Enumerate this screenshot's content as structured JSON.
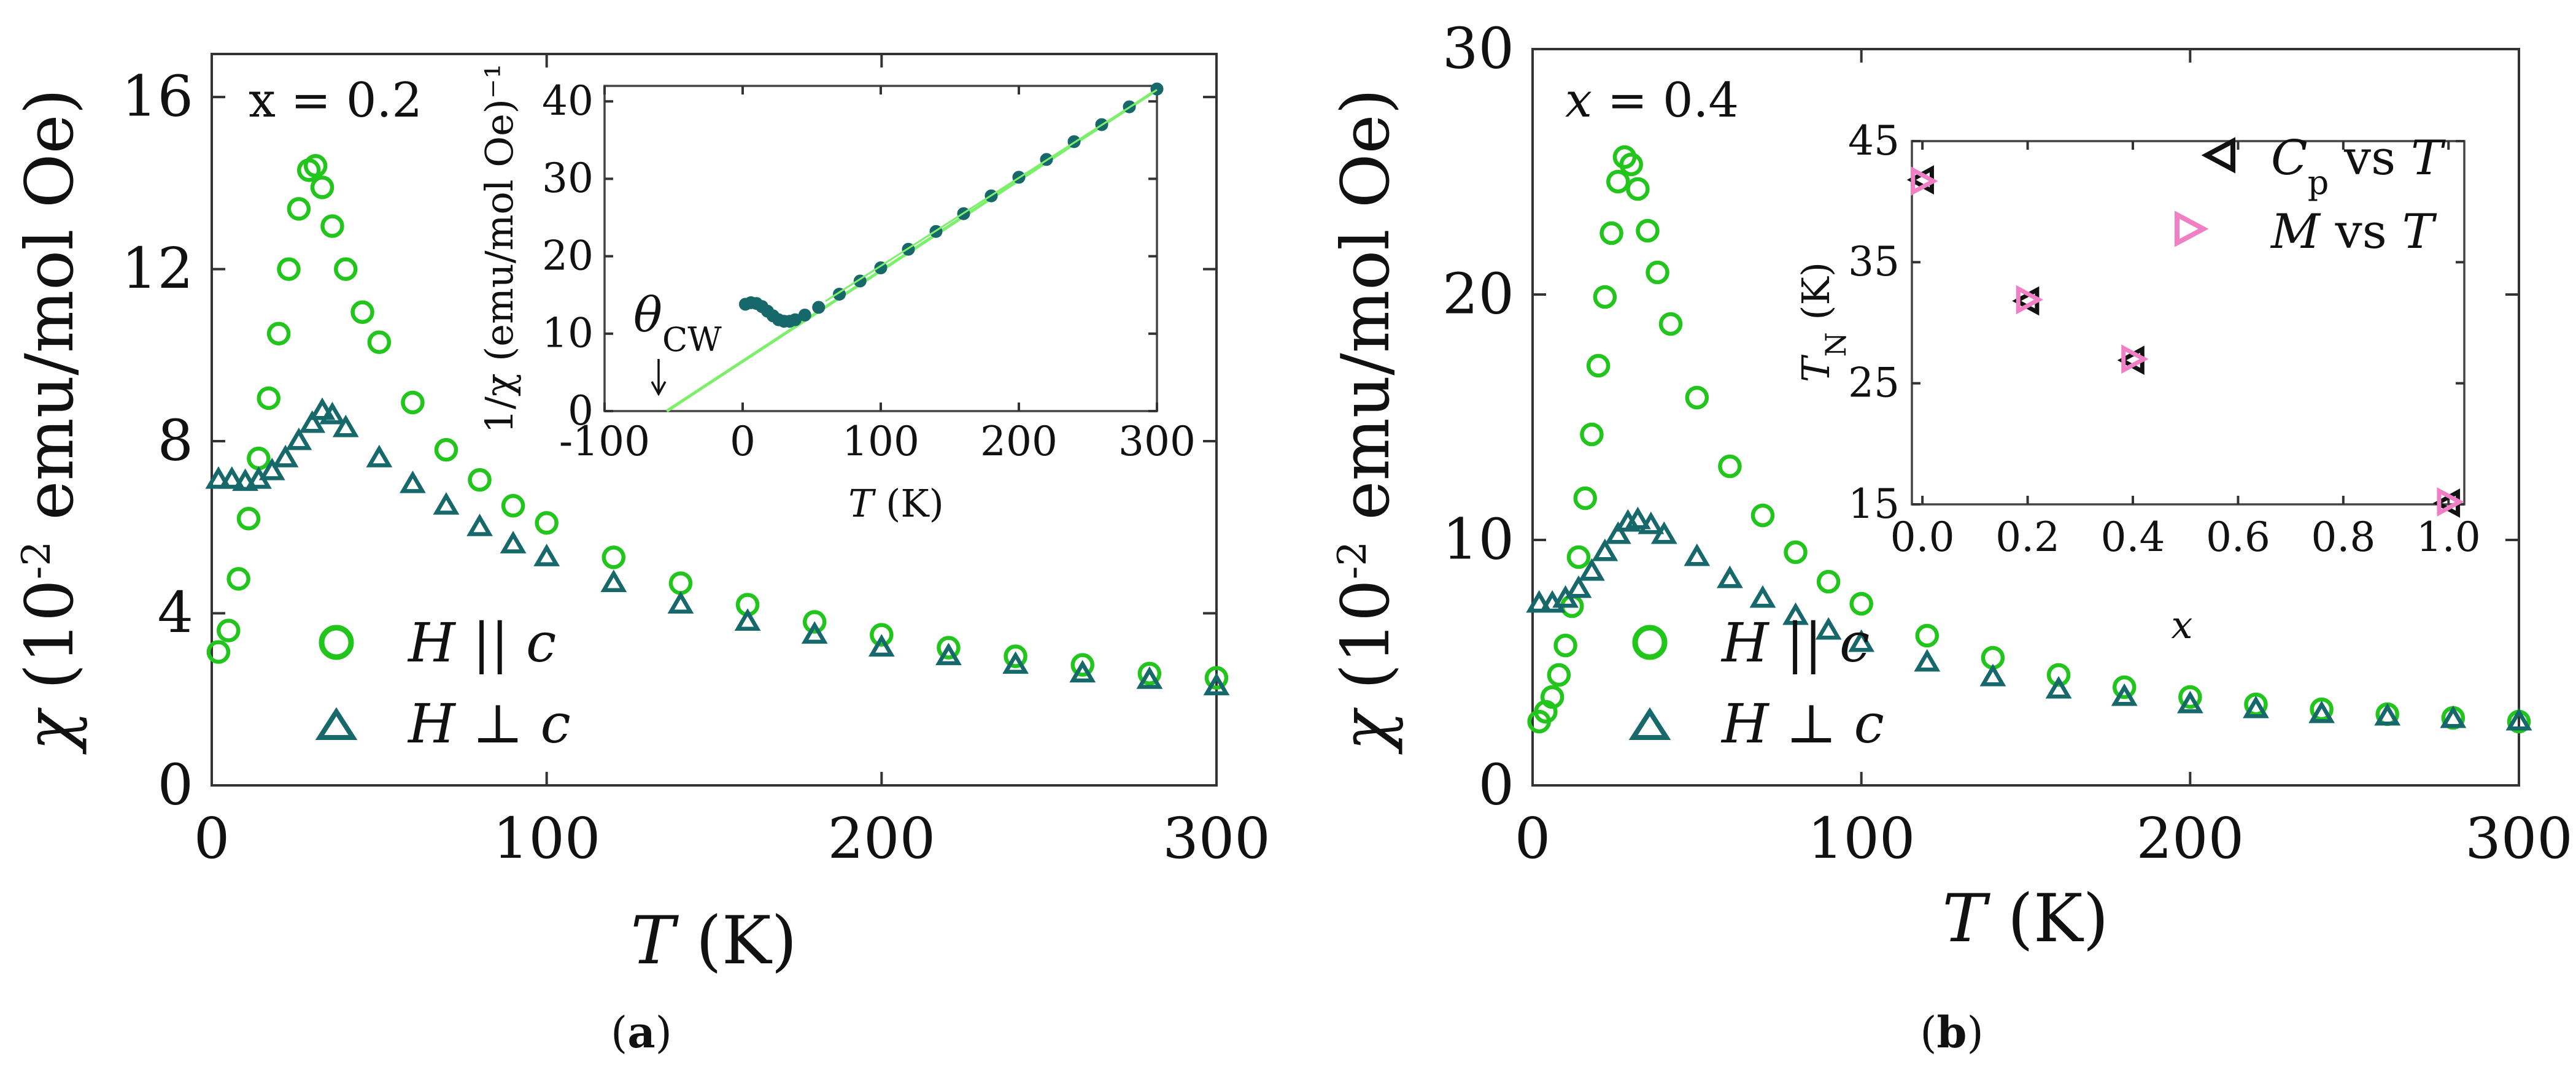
{
  "colors": {
    "h_parallel": "#22c51b",
    "h_perp": "#16686a",
    "fit_line": "#7cf06a",
    "cp_marker": "#111111",
    "m_marker": "#f07fc6"
  },
  "chart_data": [
    {
      "panel": "a",
      "type": "scatter",
      "panel_label": "(a)",
      "annotation": "x = 0.2",
      "xlabel": "T (K)",
      "ylabel": "χ (10⁻² emu/mol Oe)",
      "xlim": [
        0,
        300
      ],
      "ylim": [
        0,
        17
      ],
      "xticks": [
        "0",
        "100",
        "200",
        "300"
      ],
      "yticks": [
        "0",
        "4",
        "8",
        "12",
        "16"
      ],
      "legend_placement": "bottom-left",
      "series": [
        {
          "name": "H || c",
          "marker": "circle",
          "points": [
            [
              2,
              3.1
            ],
            [
              5,
              3.6
            ],
            [
              8,
              4.8
            ],
            [
              11,
              6.2
            ],
            [
              14,
              7.6
            ],
            [
              17,
              9.0
            ],
            [
              20,
              10.5
            ],
            [
              23,
              12.0
            ],
            [
              26,
              13.4
            ],
            [
              29,
              14.3
            ],
            [
              31,
              14.4
            ],
            [
              33,
              13.9
            ],
            [
              36,
              13.0
            ],
            [
              40,
              12.0
            ],
            [
              45,
              11.0
            ],
            [
              50,
              10.3
            ],
            [
              60,
              8.9
            ],
            [
              70,
              7.8
            ],
            [
              80,
              7.1
            ],
            [
              90,
              6.5
            ],
            [
              100,
              6.1
            ],
            [
              120,
              5.3
            ],
            [
              140,
              4.7
            ],
            [
              160,
              4.2
            ],
            [
              180,
              3.8
            ],
            [
              200,
              3.5
            ],
            [
              220,
              3.2
            ],
            [
              240,
              3.0
            ],
            [
              260,
              2.8
            ],
            [
              280,
              2.6
            ],
            [
              300,
              2.5
            ]
          ]
        },
        {
          "name": "H ⊥ c",
          "marker": "triangle",
          "points": [
            [
              2,
              7.1
            ],
            [
              6,
              7.1
            ],
            [
              10,
              7.05
            ],
            [
              14,
              7.1
            ],
            [
              18,
              7.3
            ],
            [
              22,
              7.6
            ],
            [
              26,
              8.0
            ],
            [
              30,
              8.4
            ],
            [
              33,
              8.7
            ],
            [
              36,
              8.6
            ],
            [
              40,
              8.3
            ],
            [
              50,
              7.6
            ],
            [
              60,
              7.0
            ],
            [
              70,
              6.5
            ],
            [
              80,
              6.0
            ],
            [
              90,
              5.6
            ],
            [
              100,
              5.3
            ],
            [
              120,
              4.7
            ],
            [
              140,
              4.2
            ],
            [
              160,
              3.8
            ],
            [
              180,
              3.5
            ],
            [
              200,
              3.2
            ],
            [
              220,
              3.0
            ],
            [
              240,
              2.8
            ],
            [
              260,
              2.6
            ],
            [
              280,
              2.45
            ],
            [
              300,
              2.3
            ]
          ]
        }
      ],
      "inset": {
        "type": "scatter",
        "xlabel": "T (K)",
        "ylabel": "1/χ (emu/mol Oe)⁻¹",
        "xlim": [
          -100,
          300
        ],
        "ylim": [
          0,
          42
        ],
        "xticks": [
          "-100",
          "0",
          "100",
          "200",
          "300"
        ],
        "yticks": [
          "0",
          "10",
          "20",
          "30",
          "40"
        ],
        "annotation": "θCW",
        "theta_cw": -55,
        "fit": {
          "x": [
            -55,
            300
          ],
          "y": [
            0,
            41.5
          ]
        },
        "points": [
          [
            2,
            13.8
          ],
          [
            6,
            14.0
          ],
          [
            10,
            13.9
          ],
          [
            14,
            13.5
          ],
          [
            18,
            12.9
          ],
          [
            22,
            12.3
          ],
          [
            26,
            11.8
          ],
          [
            30,
            11.6
          ],
          [
            34,
            11.6
          ],
          [
            38,
            11.8
          ],
          [
            45,
            12.4
          ],
          [
            55,
            13.4
          ],
          [
            70,
            15.1
          ],
          [
            85,
            16.8
          ],
          [
            100,
            18.5
          ],
          [
            120,
            20.9
          ],
          [
            140,
            23.2
          ],
          [
            160,
            25.5
          ],
          [
            180,
            27.8
          ],
          [
            200,
            30.2
          ],
          [
            220,
            32.5
          ],
          [
            240,
            34.8
          ],
          [
            260,
            37.0
          ],
          [
            280,
            39.3
          ],
          [
            300,
            41.6
          ]
        ]
      }
    },
    {
      "panel": "b",
      "type": "scatter",
      "panel_label": "(b)",
      "annotation": "x = 0.4",
      "xlabel": "T (K)",
      "ylabel": "χ (10⁻² emu/mol Oe)",
      "xlim": [
        0,
        300
      ],
      "ylim": [
        0,
        30
      ],
      "xticks": [
        "0",
        "100",
        "200",
        "300"
      ],
      "yticks": [
        "0",
        "10",
        "20",
        "30"
      ],
      "legend_placement": "bottom-left",
      "series": [
        {
          "name": "H || c",
          "marker": "circle",
          "points": [
            [
              2,
              2.6
            ],
            [
              4,
              3.0
            ],
            [
              6,
              3.6
            ],
            [
              8,
              4.5
            ],
            [
              10,
              5.7
            ],
            [
              12,
              7.3
            ],
            [
              14,
              9.3
            ],
            [
              16,
              11.7
            ],
            [
              18,
              14.3
            ],
            [
              20,
              17.1
            ],
            [
              22,
              19.9
            ],
            [
              24,
              22.5
            ],
            [
              26,
              24.6
            ],
            [
              28,
              25.6
            ],
            [
              30,
              25.3
            ],
            [
              32,
              24.3
            ],
            [
              35,
              22.6
            ],
            [
              38,
              20.9
            ],
            [
              42,
              18.8
            ],
            [
              50,
              15.8
            ],
            [
              60,
              13.0
            ],
            [
              70,
              11.0
            ],
            [
              80,
              9.5
            ],
            [
              90,
              8.3
            ],
            [
              100,
              7.4
            ],
            [
              120,
              6.1
            ],
            [
              140,
              5.2
            ],
            [
              160,
              4.5
            ],
            [
              180,
              4.0
            ],
            [
              200,
              3.6
            ],
            [
              220,
              3.3
            ],
            [
              240,
              3.1
            ],
            [
              260,
              2.9
            ],
            [
              280,
              2.75
            ],
            [
              300,
              2.6
            ]
          ]
        },
        {
          "name": "H ⊥ c",
          "marker": "triangle",
          "points": [
            [
              2,
              7.4
            ],
            [
              6,
              7.4
            ],
            [
              10,
              7.6
            ],
            [
              14,
              8.0
            ],
            [
              18,
              8.7
            ],
            [
              22,
              9.5
            ],
            [
              26,
              10.2
            ],
            [
              29,
              10.7
            ],
            [
              32,
              10.8
            ],
            [
              36,
              10.6
            ],
            [
              40,
              10.2
            ],
            [
              50,
              9.3
            ],
            [
              60,
              8.4
            ],
            [
              70,
              7.6
            ],
            [
              80,
              6.9
            ],
            [
              90,
              6.3
            ],
            [
              100,
              5.8
            ],
            [
              120,
              5.0
            ],
            [
              140,
              4.4
            ],
            [
              160,
              3.9
            ],
            [
              180,
              3.6
            ],
            [
              200,
              3.3
            ],
            [
              220,
              3.1
            ],
            [
              240,
              2.9
            ],
            [
              260,
              2.8
            ],
            [
              280,
              2.7
            ],
            [
              300,
              2.6
            ]
          ]
        }
      ],
      "inset": {
        "type": "scatter",
        "xlabel": "x",
        "ylabel": "TN (K)",
        "xlim": [
          -0.02,
          1.03
        ],
        "ylim": [
          15,
          45
        ],
        "xticks": [
          "0.0",
          "0.2",
          "0.4",
          "0.6",
          "0.8",
          "1.0"
        ],
        "yticks": [
          "15",
          "25",
          "35",
          "45"
        ],
        "legend_placement": "top-right",
        "series": [
          {
            "name": "Cp vs T",
            "marker": "triangle-left",
            "points": [
              [
                0.0,
                41.8
              ],
              [
                0.2,
                31.8
              ],
              [
                0.4,
                26.9
              ],
              [
                1.0,
                15.1
              ]
            ]
          },
          {
            "name": "M vs T",
            "marker": "triangle-right",
            "points": [
              [
                0.0,
                41.7
              ],
              [
                0.2,
                31.9
              ],
              [
                0.4,
                27.0
              ],
              [
                1.0,
                15.2
              ]
            ]
          }
        ]
      }
    }
  ]
}
